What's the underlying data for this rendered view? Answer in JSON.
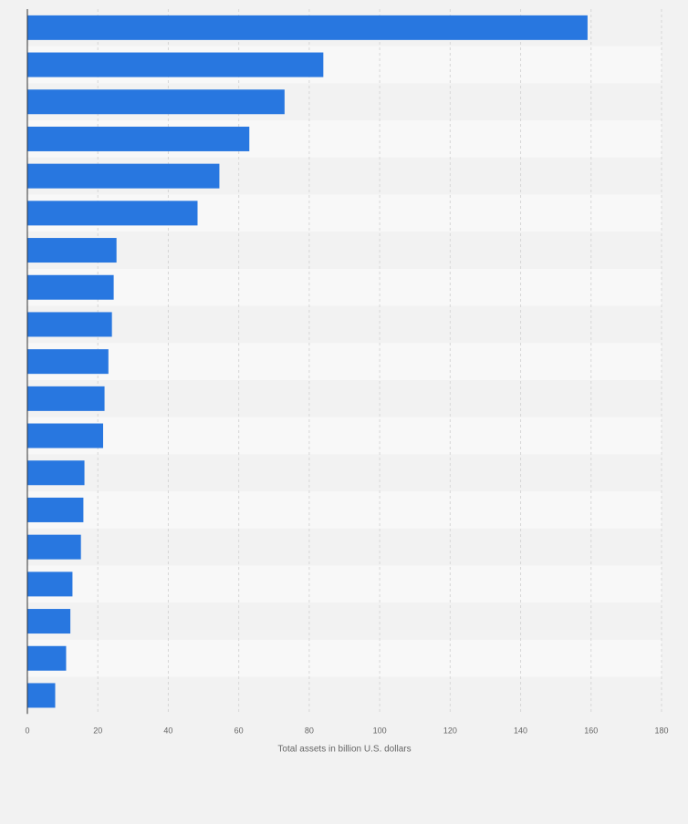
{
  "chart_data": {
    "type": "bar",
    "orientation": "horizontal",
    "categories": [
      "",
      "",
      "",
      "",
      "",
      "",
      "",
      "",
      "",
      "",
      "",
      "",
      "",
      "",
      "",
      "",
      "",
      "",
      ""
    ],
    "values": [
      159,
      84,
      73,
      63,
      54.5,
      48.3,
      25.3,
      24.5,
      24,
      23,
      21.9,
      21.5,
      16.2,
      15.9,
      15.2,
      12.8,
      12.2,
      11,
      7.9
    ],
    "xlabel": "Total assets in billion U.S. dollars",
    "ylabel": "",
    "xlim": [
      0,
      180
    ],
    "xticks": [
      0,
      20,
      40,
      60,
      80,
      100,
      120,
      140,
      160,
      180
    ],
    "xtick_labels": [
      "0",
      "20",
      "40",
      "60",
      "80",
      "100",
      "120",
      "140",
      "160",
      "180"
    ],
    "grid": "vertical, dashed",
    "legend": "none",
    "colors": {
      "bar": "#2877e0",
      "band_light": "#f8f8f8",
      "band_dark": "#f2f2f2",
      "grid": "#d7d7d7",
      "axis": "#333333",
      "tick_text": "#666666"
    }
  }
}
